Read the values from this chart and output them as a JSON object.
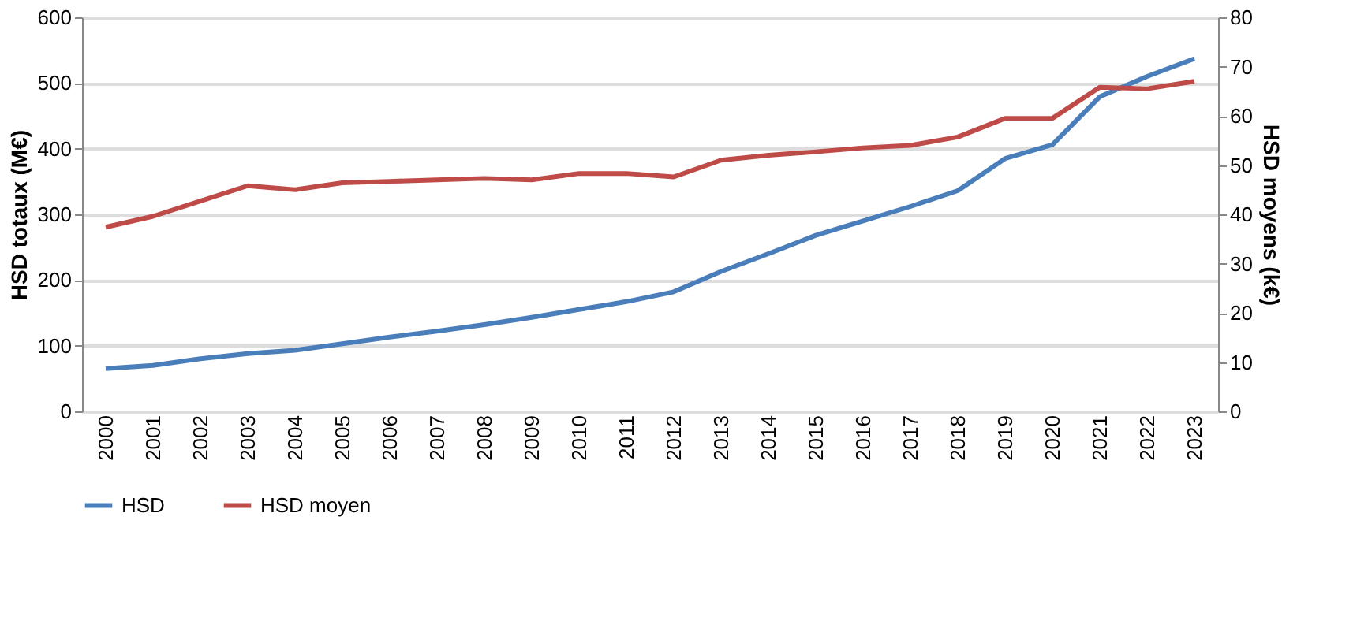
{
  "chart_data": {
    "type": "line",
    "categories": [
      "2000",
      "2001",
      "2002",
      "2003",
      "2004",
      "2005",
      "2006",
      "2007",
      "2008",
      "2009",
      "2010",
      "2011",
      "2012",
      "2013",
      "2014",
      "2015",
      "2016",
      "2017",
      "2018",
      "2019",
      "2020",
      "2021",
      "2022",
      "2023"
    ],
    "ylabel": "HSD totaux (M€)",
    "y2label": "HSD moyens (k€)",
    "ylim": [
      0,
      600
    ],
    "yticks": [
      0,
      100,
      200,
      300,
      400,
      500,
      600
    ],
    "y2lim": [
      0,
      80
    ],
    "y2ticks": [
      0,
      10,
      20,
      30,
      40,
      50,
      60,
      70,
      80
    ],
    "grid": "y",
    "legend": "bottom",
    "line_style": "solid",
    "marker": "none",
    "series": [
      {
        "name": "HSD",
        "color": "#4a7ebb",
        "values": [
          65,
          70,
          80,
          88,
          93,
          103,
          113,
          122,
          132,
          143,
          155,
          167,
          182,
          213,
          240,
          268,
          290,
          312,
          336,
          385,
          406,
          479,
          510,
          537
        ]
      },
      {
        "name": "HSD moyen",
        "color": "#be4b48",
        "axis": "y2",
        "values": [
          37.4,
          39.6,
          42.7,
          45.8,
          45,
          46.4,
          46.7,
          47,
          47.3,
          47,
          48.3,
          48.3,
          47.6,
          51,
          52,
          52.7,
          53.5,
          54,
          55.7,
          59.5,
          59.5,
          65.8,
          65.5,
          67
        ]
      }
    ]
  }
}
